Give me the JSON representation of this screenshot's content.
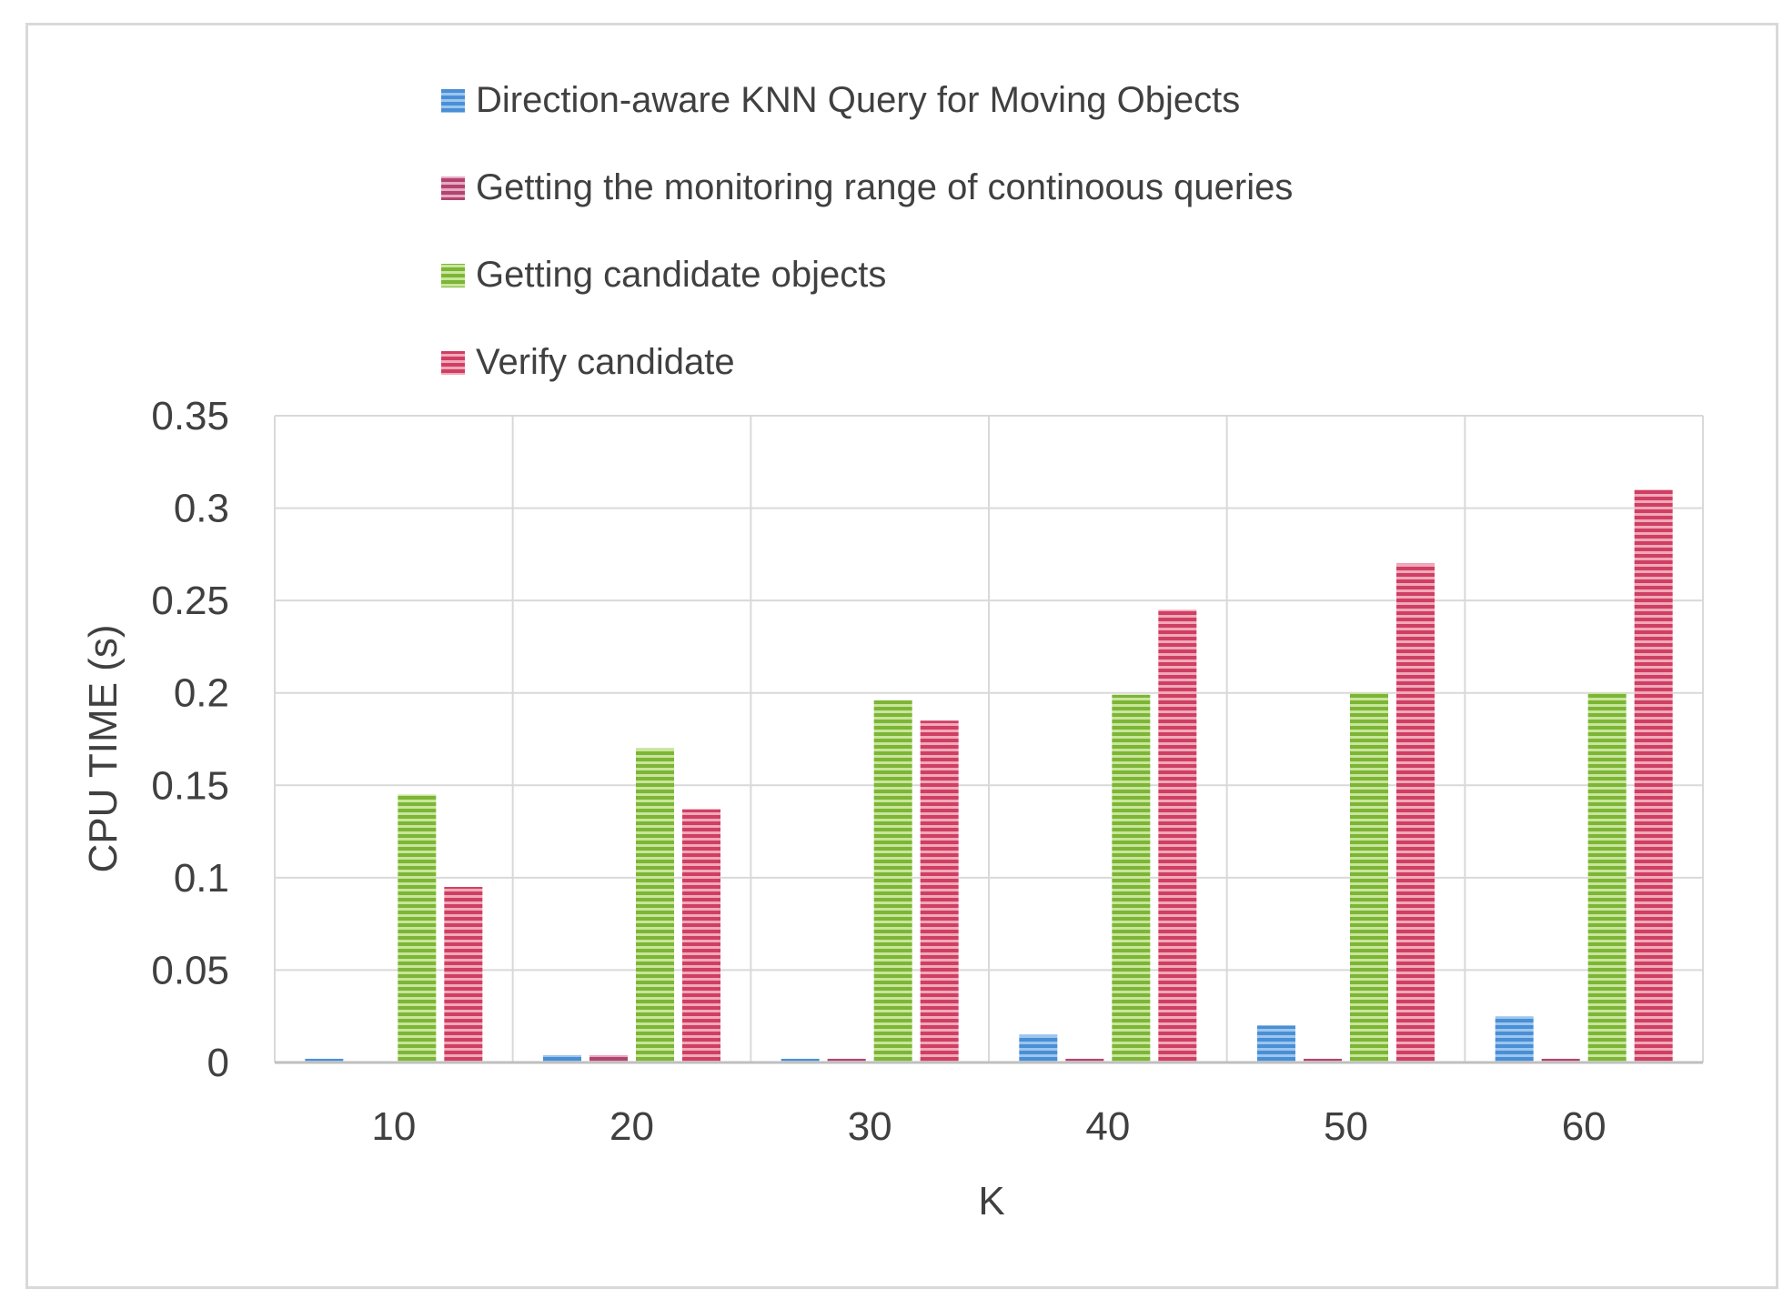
{
  "chart_data": {
    "type": "bar",
    "title": "",
    "xlabel": "K",
    "ylabel": "CPU TIME (s)",
    "categories": [
      "10",
      "20",
      "30",
      "40",
      "50",
      "60"
    ],
    "ylim": [
      0,
      0.35
    ],
    "yticks": [
      "0",
      "0.05",
      "0.1",
      "0.15",
      "0.2",
      "0.25",
      "0.3",
      "0.35"
    ],
    "grid": true,
    "legend_position": "top",
    "series": [
      {
        "name": "Direction-aware KNN Query for Moving Objects",
        "color": "#4a8fd6",
        "values": [
          0.002,
          0.004,
          0.002,
          0.015,
          0.02,
          0.025
        ]
      },
      {
        "name": "Getting the monitoring range of continoous queries",
        "color": "#c0507a",
        "values": [
          0.0005,
          0.004,
          0.002,
          0.002,
          0.002,
          0.002
        ]
      },
      {
        "name": "Getting candidate objects",
        "color": "#8dc63f",
        "values": [
          0.145,
          0.17,
          0.196,
          0.199,
          0.2,
          0.2
        ]
      },
      {
        "name": "Verify candidate",
        "color": "#d9456a",
        "values": [
          0.095,
          0.137,
          0.185,
          0.245,
          0.27,
          0.31
        ]
      }
    ]
  }
}
